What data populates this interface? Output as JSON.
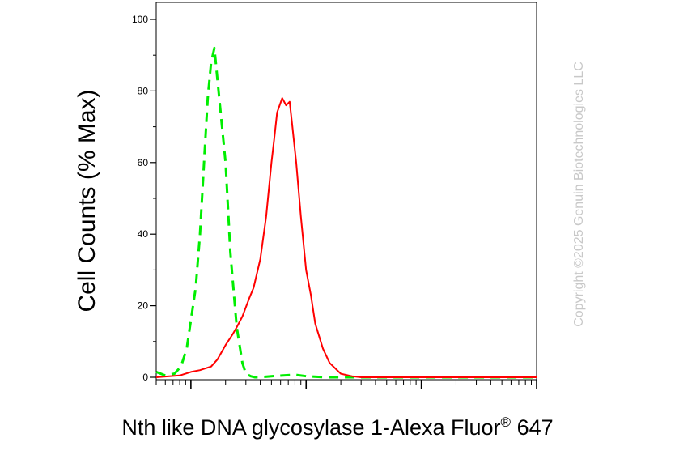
{
  "chart_data": {
    "type": "line",
    "xlabel": "Nth like DNA glycosylase 1-Alexa Fluor",
    "xlabel_sup": "®",
    "xlabel_suffix": " 647",
    "ylabel": "Cell Counts (% Max)",
    "ylim": [
      0,
      100
    ],
    "yticks": [
      0,
      20,
      40,
      60,
      80,
      100
    ],
    "x_scale": "log",
    "xlim": [
      0.5,
      1000
    ],
    "x_tick_labels": false,
    "grid": false,
    "series": [
      {
        "color": "#00ee00",
        "style": "dashed",
        "x": [
          0.5,
          0.6,
          0.72,
          0.82,
          0.92,
          1.0,
          1.1,
          1.2,
          1.3,
          1.4,
          1.5,
          1.6,
          1.8,
          2.0,
          2.2,
          2.5,
          2.8,
          3.0,
          3.3,
          3.6,
          4.0,
          5,
          8,
          10,
          15,
          20,
          30,
          100,
          1000
        ],
        "y": [
          1.5,
          0.5,
          1,
          3,
          8,
          16,
          25,
          40,
          60,
          78,
          88,
          92,
          75,
          60,
          35,
          14,
          4,
          1,
          0.3,
          0,
          0,
          0.3,
          0.7,
          0.3,
          0,
          0,
          0,
          0,
          0
        ]
      },
      {
        "color": "#ff0000",
        "style": "solid",
        "x": [
          0.5,
          0.8,
          1.0,
          1.2,
          1.5,
          1.7,
          2.0,
          2.3,
          2.5,
          2.8,
          3.2,
          3.5,
          4.0,
          4.5,
          5.0,
          5.3,
          5.6,
          6.2,
          6.7,
          7.2,
          7.6,
          8.2,
          9.0,
          10.0,
          11.0,
          12.0,
          14.0,
          16.0,
          20.0,
          25.0,
          30.0,
          40.0,
          100,
          1000
        ],
        "y": [
          0,
          0.5,
          1.5,
          2,
          3,
          5,
          9,
          12,
          14,
          17,
          22,
          25,
          33,
          45,
          60,
          67,
          74,
          78,
          76,
          77,
          70,
          60,
          45,
          30,
          23,
          15,
          8,
          4,
          1,
          0.3,
          0,
          0,
          0,
          0
        ]
      }
    ]
  },
  "watermark": "Copyright ©2025 Genuin Biotechnologies LLC"
}
